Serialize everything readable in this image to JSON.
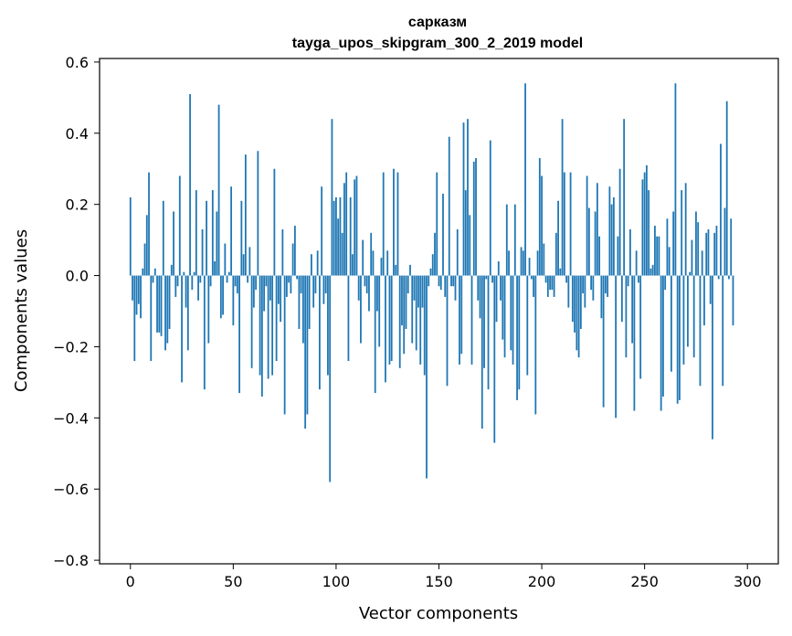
{
  "chart_data": {
    "type": "bar",
    "title": "сарказм",
    "subtitle": "tayga_upos_skipgram_300_2_2019 model",
    "xlabel": "Vector components",
    "ylabel": "Components values",
    "xlim": [
      -15,
      315
    ],
    "ylim": [
      -0.81,
      0.61
    ],
    "x_ticks": [
      0,
      50,
      100,
      150,
      200,
      250,
      300
    ],
    "y_ticks": [
      -0.8,
      -0.6,
      -0.4,
      -0.2,
      0.0,
      0.2,
      0.4,
      0.6
    ],
    "x_tick_labels": [
      "0",
      "50",
      "100",
      "150",
      "200",
      "250",
      "300"
    ],
    "y_tick_labels": [
      "−0.8",
      "−0.6",
      "−0.4",
      "−0.2",
      "0.0",
      "0.2",
      "0.4",
      "0.6"
    ],
    "bar_color": "#1f77b4",
    "grid": false,
    "legend": "none",
    "values": [
      0.22,
      -0.07,
      -0.24,
      -0.11,
      -0.08,
      -0.12,
      0.02,
      0.09,
      0.17,
      0.29,
      -0.24,
      -0.02,
      0.02,
      -0.16,
      -0.16,
      -0.17,
      0.21,
      -0.21,
      -0.19,
      -0.15,
      0.03,
      0.18,
      -0.06,
      -0.03,
      0.28,
      -0.3,
      0.01,
      -0.09,
      -0.21,
      0.51,
      -0.04,
      0.01,
      0.24,
      -0.07,
      -0.02,
      0.13,
      -0.32,
      0.21,
      -0.19,
      -0.03,
      0.24,
      0.04,
      0.18,
      0.48,
      -0.12,
      -0.11,
      0.09,
      -0.02,
      0.01,
      0.25,
      -0.14,
      -0.03,
      -0.05,
      -0.33,
      0.21,
      0.06,
      0.34,
      -0.02,
      0.08,
      -0.26,
      -0.09,
      -0.04,
      0.35,
      -0.28,
      -0.34,
      -0.1,
      -0.03,
      -0.29,
      -0.07,
      -0.28,
      0.3,
      -0.24,
      -0.08,
      -0.13,
      0.13,
      -0.39,
      -0.06,
      -0.02,
      -0.05,
      0.09,
      0.14,
      -0.01,
      -0.15,
      -0.05,
      -0.19,
      -0.43,
      -0.39,
      -0.15,
      0.06,
      -0.09,
      -0.05,
      0.07,
      -0.32,
      0.25,
      -0.08,
      -0.05,
      -0.28,
      -0.58,
      0.44,
      0.21,
      0.22,
      0.16,
      0.22,
      0.12,
      0.26,
      0.29,
      -0.24,
      0.22,
      0.06,
      0.27,
      0.28,
      -0.07,
      -0.19,
      0.1,
      -0.03,
      -0.05,
      -0.1,
      0.12,
      0.07,
      -0.33,
      -0.1,
      -0.2,
      0.05,
      0.29,
      -0.3,
      0.07,
      -0.25,
      -0.24,
      0.3,
      0.03,
      0.29,
      -0.26,
      -0.14,
      -0.22,
      -0.15,
      -0.05,
      0.03,
      -0.19,
      -0.07,
      -0.21,
      -0.09,
      -0.25,
      -0.09,
      -0.28,
      -0.57,
      -0.03,
      0.02,
      0.06,
      0.12,
      0.29,
      -0.03,
      -0.04,
      0.23,
      -0.06,
      -0.31,
      0.39,
      -0.03,
      -0.03,
      -0.07,
      0.13,
      -0.25,
      -0.22,
      0.43,
      0.24,
      0.44,
      0.17,
      -0.25,
      0.32,
      0.33,
      -0.07,
      -0.12,
      -0.43,
      -0.26,
      -0.01,
      -0.32,
      0.38,
      -0.02,
      -0.47,
      -0.13,
      0.04,
      -0.07,
      -0.18,
      -0.23,
      0.2,
      0.07,
      -0.21,
      -0.25,
      0.2,
      -0.35,
      -0.32,
      0.08,
      0.07,
      0.54,
      -0.28,
      0.05,
      -0.01,
      -0.06,
      -0.39,
      0.07,
      0.33,
      0.28,
      0.09,
      -0.02,
      -0.06,
      -0.04,
      -0.04,
      -0.06,
      0.12,
      0.21,
      0.02,
      0.44,
      0.29,
      -0.02,
      -0.09,
      0.29,
      -0.13,
      -0.16,
      -0.21,
      -0.23,
      -0.15,
      -0.05,
      -0.09,
      0.28,
      0.19,
      -0.04,
      -0.07,
      0.18,
      0.26,
      0.11,
      -0.12,
      -0.37,
      -0.05,
      -0.06,
      0.25,
      0.2,
      0.22,
      -0.4,
      0.11,
      0.3,
      -0.13,
      0.44,
      -0.23,
      -0.03,
      0.13,
      -0.19,
      -0.38,
      0.07,
      -0.02,
      -0.29,
      0.27,
      0.29,
      0.31,
      0.24,
      0.02,
      0.03,
      0.14,
      0.11,
      0.11,
      -0.38,
      -0.34,
      -0.04,
      0.16,
      0.08,
      -0.27,
      0.18,
      0.54,
      -0.36,
      -0.35,
      0.24,
      -0.25,
      0.26,
      -0.2,
      0.01,
      0.1,
      -0.23,
      0.18,
      0.15,
      -0.31,
      0.07,
      -0.14,
      0.12,
      0.13,
      -0.08,
      -0.46,
      0.12,
      0.14,
      -0.01,
      0.37,
      -0.31,
      0.19,
      0.49,
      -0.01,
      0.16,
      -0.14
    ]
  }
}
